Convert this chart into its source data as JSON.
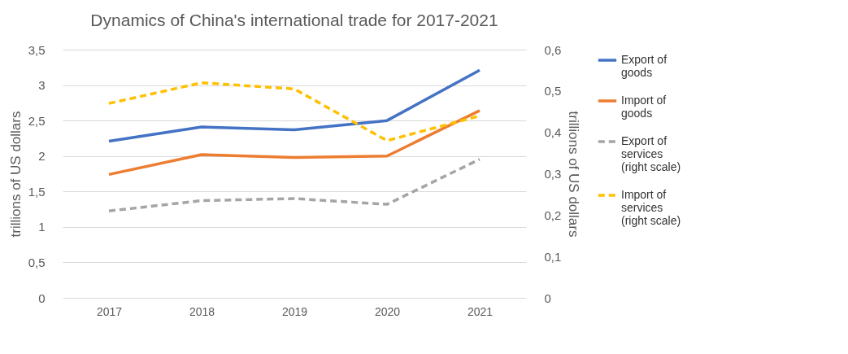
{
  "chart_data": {
    "type": "line",
    "title": "Dynamics of China's international trade for 2017-2021",
    "ylabel": "trillions of US dollars",
    "y2label": "trillions of US dollars",
    "categories": [
      "2017",
      "2018",
      "2019",
      "2020",
      "2021"
    ],
    "series": [
      {
        "name": "Export of goods",
        "color": "#4472c4",
        "line_style": "solid",
        "values": [
          2.21,
          2.41,
          2.37,
          2.5,
          3.21
        ]
      },
      {
        "name": "Import of goods",
        "color": "#ed7d31",
        "line_style": "solid",
        "values": [
          1.74,
          2.02,
          1.98,
          2.0,
          2.64
        ]
      },
      {
        "name": "Export of services (right scale)",
        "color": "#a5a5a5",
        "line_style": "dashed",
        "axis": "y2",
        "values": [
          0.21,
          0.235,
          0.24,
          0.226,
          0.335
        ]
      },
      {
        "name": "Import of services (right scale)",
        "color": "#ffc000",
        "line_style": "dashed",
        "axis": "y2",
        "values": [
          0.47,
          0.52,
          0.505,
          0.38,
          0.44
        ]
      }
    ],
    "ylim": [
      0,
      3.5
    ],
    "yticks": [
      0,
      {
        "value": 0.5,
        "label": "0,5"
      },
      1,
      {
        "value": 1.5,
        "label": "1,5"
      },
      2,
      {
        "value": 2.5,
        "label": "2,5"
      },
      3,
      {
        "value": 3.5,
        "label": "3,5"
      }
    ],
    "y2lim": [
      0,
      0.6
    ],
    "y2ticks": [
      0,
      {
        "value": 0.1,
        "label": "0,1"
      },
      {
        "value": 0.2,
        "label": "0,2"
      },
      {
        "value": 0.3,
        "label": "0,3"
      },
      {
        "value": 0.4,
        "label": "0,4"
      },
      {
        "value": 0.5,
        "label": "0,5"
      },
      {
        "value": 0.6,
        "label": "0,6"
      }
    ],
    "grid": "y",
    "legend": "right"
  }
}
